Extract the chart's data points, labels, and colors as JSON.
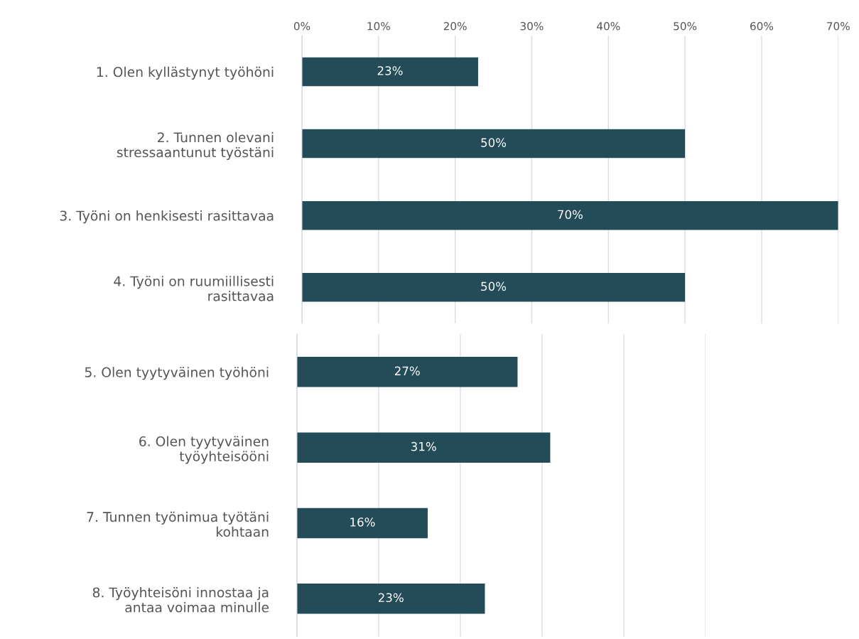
{
  "chart_data": [
    {
      "type": "bar",
      "orientation": "horizontal",
      "categories": [
        "1. Olen kyllästynyt työhöni",
        "2. Tunnen olevani\nstressaantunut työstäni",
        "3. Työni on henkisesti rasittavaa",
        "4. Työni on ruumiillisesti\nrasittavaa"
      ],
      "values": [
        23,
        50,
        70,
        50
      ],
      "color": "#234b58",
      "value_labels": [
        "23%",
        "50%",
        "70%",
        "50%"
      ],
      "xlim": [
        0,
        70
      ],
      "xticks": [
        {
          "value": 0,
          "label": "0%"
        },
        {
          "value": 10,
          "label": "10%"
        },
        {
          "value": 20,
          "label": "20%"
        },
        {
          "value": 30,
          "label": "30%"
        },
        {
          "value": 40,
          "label": "40%"
        },
        {
          "value": 50,
          "label": "50%"
        },
        {
          "value": 60,
          "label": "60%"
        },
        {
          "value": 70,
          "label": "70%"
        }
      ],
      "grid": "x"
    },
    {
      "type": "bar",
      "orientation": "horizontal",
      "categories": [
        "5. Olen tyytyväinen työhöni",
        "6. Olen tyytyväinen\ntyöyhteisööni",
        "7. Tunnen työnimua työtäni\nkohtaan",
        "8. Työyhteisöni innostaa ja\nantaa voimaa minulle"
      ],
      "values": [
        27,
        31,
        16,
        23
      ],
      "color": "#234b58",
      "value_labels": [
        "27%",
        "31%",
        "16%",
        "23%"
      ],
      "xlim": [
        0,
        50
      ],
      "xticks": [
        {
          "value": 0,
          "label": null
        },
        {
          "value": 10,
          "label": null
        },
        {
          "value": 20,
          "label": null
        },
        {
          "value": 30,
          "label": null
        },
        {
          "value": 40,
          "label": null
        },
        {
          "value": 50,
          "label": null
        }
      ],
      "tick_labels": "y",
      "grid": "x"
    }
  ]
}
